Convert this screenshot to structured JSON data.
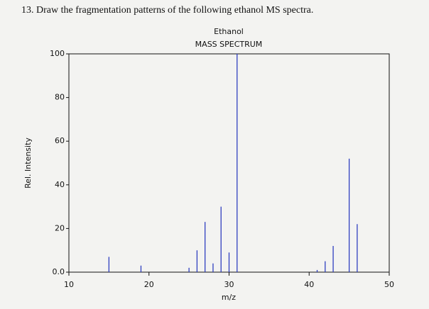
{
  "heading": "13. Draw the fragmentation patterns of the following ethanol MS spectra.",
  "chart_data": {
    "type": "bar",
    "title": "Ethanol",
    "subtitle": "MASS SPECTRUM",
    "x_label": "m/z",
    "y_label": "Rel. Intensity",
    "x": [
      15,
      19,
      25,
      26,
      27,
      28,
      29,
      30,
      31,
      41,
      42,
      43,
      45,
      46
    ],
    "values": [
      7,
      3,
      2,
      10,
      23,
      4,
      30,
      9,
      100,
      1,
      5,
      12,
      52,
      22
    ],
    "color": "#2f3fc0",
    "xlim": [
      10,
      50
    ],
    "xticks": [
      10,
      20,
      30,
      40,
      50
    ],
    "ylim": [
      0,
      100
    ],
    "yticks": [
      {
        "value": 0,
        "label": "0.0"
      },
      20,
      40,
      60,
      80,
      100
    ],
    "grid": false
  }
}
